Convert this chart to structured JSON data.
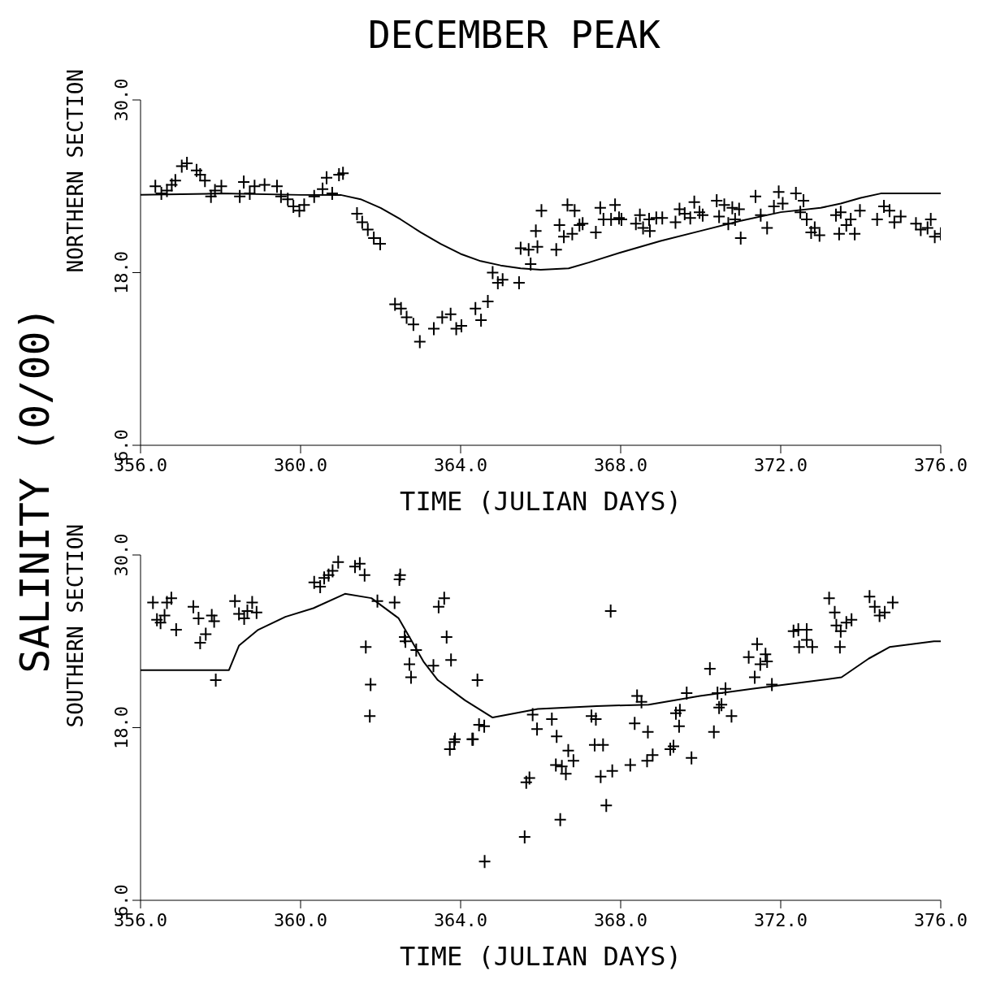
{
  "chart_data": [
    {
      "type": "scatter",
      "title": "DECEMBER PEAK",
      "xlabel": "TIME (JULIAN DAYS)",
      "ylabel": "NORTHERN SECTION",
      "annotations": [
        "SALINITY (0/00)"
      ],
      "xlim": [
        356,
        376
      ],
      "xticks": [
        {
          "value": 356,
          "label": "356.0"
        },
        {
          "value": 360,
          "label": "360.0"
        },
        {
          "value": 364,
          "label": "364.0"
        },
        {
          "value": 368,
          "label": "368.0"
        },
        {
          "value": 372,
          "label": "372.0"
        },
        {
          "value": 376,
          "label": "376.0"
        }
      ],
      "ylim": [
        6,
        30
      ],
      "yticks": [
        {
          "value": 6,
          "label": "6.0"
        },
        {
          "value": 18,
          "label": "18.0"
        },
        {
          "value": 30,
          "label": "30.0"
        }
      ],
      "series": [
        {
          "type": "line",
          "color": "#000000",
          "x": [
            356,
            358,
            360,
            361,
            361.5,
            362,
            362.5,
            363,
            363.5,
            364,
            364.5,
            365,
            365.5,
            366,
            366.7,
            367.2,
            368,
            369,
            370,
            371,
            372,
            373,
            373.5,
            374,
            374.5,
            375,
            376
          ],
          "values": [
            23.4,
            23.5,
            23.4,
            23.4,
            23.1,
            22.5,
            21.7,
            20.8,
            20.0,
            19.3,
            18.8,
            18.5,
            18.3,
            18.2,
            18.3,
            18.7,
            19.4,
            20.2,
            20.9,
            21.6,
            22.2,
            22.5,
            22.8,
            23.2,
            23.5,
            23.5,
            23.5
          ]
        },
        {
          "marker": "cross",
          "color": "#000000",
          "x": [
            356.37,
            356.52,
            356.66,
            356.78,
            356.87,
            357.03,
            357.16,
            357.4,
            357.49,
            357.61,
            357.76,
            357.86,
            358.02,
            358.48,
            358.58,
            358.73,
            358.85,
            359.1,
            359.41,
            359.51,
            359.68,
            359.82,
            359.97,
            360.09,
            360.34,
            360.55,
            360.65,
            360.79,
            360.96,
            361.06,
            361.41,
            361.54,
            361.68,
            361.83,
            361.99,
            362.36,
            362.51,
            362.65,
            362.82,
            362.98,
            363.33,
            363.54,
            363.75,
            363.89,
            364.02,
            364.37,
            364.51,
            364.68,
            364.8,
            364.93,
            365.05,
            365.46,
            365.5,
            365.7,
            365.75,
            365.92,
            365.88,
            366.02,
            366.39,
            366.47,
            366.58,
            366.67,
            366.85,
            366.79,
            366.97,
            367.05,
            367.38,
            367.49,
            367.57,
            367.76,
            367.86,
            367.96,
            368.02,
            368.38,
            368.48,
            368.56,
            368.73,
            368.71,
            368.89,
            369.04,
            369.37,
            369.47,
            369.6,
            369.74,
            369.84,
            369.97,
            370.05,
            370.4,
            370.46,
            370.59,
            370.69,
            370.79,
            370.86,
            370.96,
            371.0,
            371.37,
            371.5,
            371.66,
            371.83,
            371.95,
            372.05,
            372.38,
            372.57,
            372.49,
            372.65,
            372.76,
            372.85,
            372.97,
            373.38,
            373.5,
            373.46,
            373.64,
            373.75,
            373.85,
            373.98,
            374.41,
            374.58,
            374.72,
            374.84,
            375.0,
            375.38,
            375.5,
            375.67,
            375.75,
            375.85,
            376.0
          ],
          "values": [
            24.0,
            23.5,
            23.7,
            24.1,
            24.4,
            25.4,
            25.6,
            25.1,
            24.8,
            24.4,
            23.3,
            23.7,
            24.0,
            23.3,
            24.3,
            23.5,
            24.0,
            24.1,
            24.0,
            23.3,
            23.1,
            22.6,
            22.3,
            22.7,
            23.3,
            23.8,
            24.6,
            23.5,
            24.8,
            24.9,
            22.1,
            21.5,
            21.0,
            20.4,
            20.0,
            15.8,
            15.5,
            14.9,
            14.4,
            13.2,
            14.1,
            14.9,
            15.1,
            14.1,
            14.3,
            15.5,
            14.7,
            16.0,
            18.0,
            17.3,
            17.5,
            17.3,
            19.7,
            19.6,
            18.6,
            19.8,
            20.9,
            22.3,
            19.6,
            21.3,
            20.5,
            22.7,
            22.3,
            20.7,
            21.3,
            21.4,
            20.8,
            22.5,
            21.7,
            21.7,
            22.7,
            21.8,
            21.7,
            21.4,
            22.0,
            21.1,
            20.9,
            21.7,
            21.8,
            21.8,
            21.5,
            22.4,
            22.1,
            21.8,
            22.9,
            22.2,
            22.0,
            23.0,
            21.9,
            22.7,
            21.4,
            22.5,
            21.7,
            22.4,
            20.4,
            23.3,
            22.0,
            21.1,
            22.6,
            23.6,
            22.8,
            23.5,
            23.0,
            22.2,
            21.7,
            20.8,
            21.1,
            20.6,
            22.0,
            22.2,
            20.7,
            21.3,
            21.7,
            20.7,
            22.3,
            21.7,
            22.6,
            22.3,
            21.5,
            21.9,
            21.4,
            21.0,
            21.1,
            21.7,
            20.5,
            20.7
          ]
        }
      ]
    },
    {
      "type": "scatter",
      "xlabel": "TIME (JULIAN DAYS)",
      "ylabel": "SOUTHERN SECTION",
      "xlim": [
        356,
        376
      ],
      "xticks": [
        {
          "value": 356,
          "label": "356.0"
        },
        {
          "value": 360,
          "label": "360.0"
        },
        {
          "value": 364,
          "label": "364.0"
        },
        {
          "value": 368,
          "label": "368.0"
        },
        {
          "value": 372,
          "label": "372.0"
        },
        {
          "value": 376,
          "label": "376.0"
        }
      ],
      "ylim": [
        6,
        30
      ],
      "yticks": [
        {
          "value": 6,
          "label": "6.0"
        },
        {
          "value": 18,
          "label": "18.0"
        },
        {
          "value": 30,
          "label": "30.0"
        }
      ],
      "series": [
        {
          "type": "line",
          "color": "#000000",
          "x": [
            356,
            358.21,
            358.46,
            358.94,
            359.62,
            360.32,
            361.11,
            361.77,
            362.45,
            363.07,
            363.43,
            364.11,
            364.8,
            365.93,
            367.4,
            368.7,
            369.98,
            371.28,
            372.99,
            373.52,
            374.2,
            374.72,
            375.83,
            376
          ],
          "values": [
            22.0,
            22.0,
            23.7,
            24.8,
            25.7,
            26.3,
            27.3,
            27.0,
            25.6,
            22.6,
            21.3,
            19.9,
            18.7,
            19.3,
            19.5,
            19.6,
            20.2,
            20.7,
            21.3,
            21.5,
            22.8,
            23.6,
            24.0,
            24.0
          ]
        },
        {
          "marker": "cross",
          "color": "#000000",
          "x": [
            356.31,
            356.41,
            356.5,
            356.6,
            356.66,
            356.77,
            356.89,
            357.32,
            357.45,
            357.49,
            357.63,
            357.78,
            357.84,
            357.88,
            358.36,
            358.46,
            358.59,
            358.67,
            358.79,
            358.9,
            360.34,
            360.49,
            360.59,
            360.7,
            360.8,
            360.94,
            361.36,
            361.48,
            361.6,
            361.63,
            361.75,
            361.73,
            361.92,
            362.35,
            362.49,
            362.47,
            362.6,
            362.62,
            362.72,
            362.76,
            362.89,
            363.32,
            363.45,
            363.59,
            363.65,
            363.76,
            363.84,
            364.31,
            364.42,
            364.46,
            364.59,
            365.8,
            365.91,
            365.64,
            365.72,
            365.6,
            364.6,
            363.73,
            363.86,
            364.29,
            366.28,
            366.4,
            366.38,
            366.53,
            366.63,
            366.69,
            366.82,
            366.49,
            367.27,
            367.38,
            367.35,
            367.56,
            367.5,
            367.79,
            367.64,
            367.75,
            368.24,
            368.35,
            368.41,
            368.52,
            368.68,
            368.66,
            368.8,
            369.24,
            369.32,
            369.38,
            369.48,
            369.46,
            369.65,
            369.77,
            370.23,
            370.33,
            370.42,
            370.52,
            370.46,
            370.62,
            370.77,
            371.2,
            371.35,
            371.41,
            371.49,
            371.62,
            371.66,
            371.78,
            372.32,
            372.44,
            372.65,
            372.46,
            372.65,
            372.79,
            373.21,
            373.35,
            373.39,
            373.5,
            373.48,
            373.64,
            373.77,
            374.22,
            374.35,
            374.47,
            374.6,
            374.8
          ],
          "values": [
            26.7,
            25.5,
            25.3,
            25.8,
            26.7,
            27.0,
            24.8,
            26.4,
            25.6,
            23.9,
            24.5,
            25.8,
            25.4,
            21.3,
            26.8,
            25.9,
            25.6,
            26.1,
            26.7,
            26.0,
            28.1,
            27.8,
            28.4,
            28.6,
            28.9,
            29.5,
            29.2,
            29.4,
            28.6,
            23.6,
            21.0,
            18.8,
            26.8,
            26.7,
            28.6,
            28.3,
            24.3,
            24.0,
            22.4,
            21.5,
            23.4,
            22.3,
            26.4,
            27.0,
            24.3,
            22.7,
            17.0,
            17.2,
            21.3,
            18.2,
            18.1,
            18.9,
            17.9,
            14.2,
            14.5,
            10.4,
            8.7,
            16.5,
            17.2,
            17.2,
            18.6,
            17.4,
            15.4,
            15.3,
            14.8,
            16.4,
            15.7,
            11.6,
            18.8,
            18.6,
            16.8,
            16.8,
            14.6,
            15.0,
            12.6,
            26.1,
            15.4,
            18.3,
            20.2,
            19.8,
            17.7,
            15.7,
            16.1,
            16.5,
            16.7,
            19.0,
            19.2,
            18.1,
            20.4,
            15.9,
            22.1,
            17.7,
            20.4,
            19.6,
            19.4,
            20.7,
            18.8,
            22.9,
            21.5,
            23.8,
            22.4,
            23.1,
            22.6,
            21.0,
            24.7,
            24.8,
            24.8,
            23.6,
            24.1,
            23.6,
            27.0,
            26.0,
            25.1,
            24.7,
            23.6,
            25.3,
            25.5,
            27.1,
            26.4,
            25.8,
            26.0,
            26.7
          ]
        }
      ]
    }
  ]
}
